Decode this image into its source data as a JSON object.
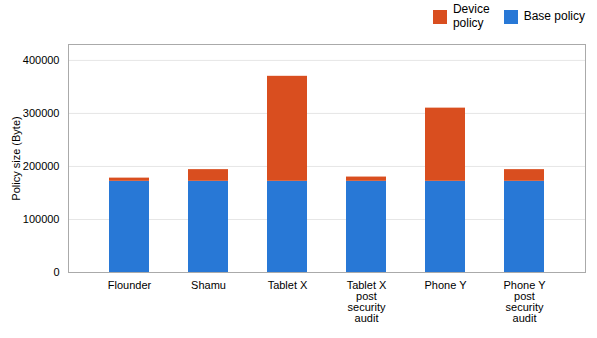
{
  "chart_data": {
    "type": "bar",
    "stacked": true,
    "categories": [
      "Flounder",
      "Shamu",
      "Tablet X",
      "Tablet X\npost\nsecurity\naudit",
      "Phone Y",
      "Phone Y\npost\nsecurity\naudit"
    ],
    "series": [
      {
        "name": "Base policy",
        "color": "#2878d6",
        "values": [
          172000,
          172000,
          172000,
          172000,
          172000,
          172000
        ]
      },
      {
        "name": "Device\npolicy",
        "color": "#d94e1f",
        "values": [
          6000,
          22000,
          198000,
          8000,
          138000,
          22000
        ]
      }
    ],
    "ylabel": "Policy size (Byte)",
    "ylim": [
      0,
      430000
    ],
    "yticks": [
      0,
      100000,
      200000,
      300000,
      400000
    ],
    "grid": true,
    "legend": "upper right"
  }
}
